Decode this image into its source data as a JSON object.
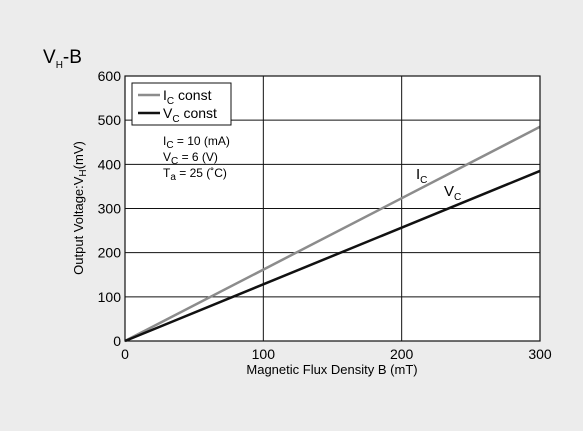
{
  "chart_data": {
    "type": "line",
    "title": {
      "main": "V",
      "sub": "H",
      "rest": "-B"
    },
    "xlabel": "Magnetic Flux Density B (mT)",
    "ylabel": {
      "pre": "Output Voltage:V",
      "sub": "H",
      "post": "(mV)"
    },
    "xlim": [
      0,
      300
    ],
    "ylim": [
      0,
      600
    ],
    "xticks": [
      "0",
      "100",
      "200",
      "300"
    ],
    "yticks": [
      "0",
      "100",
      "200",
      "300",
      "400",
      "500",
      "600"
    ],
    "grid": true,
    "legend_position": "top-left",
    "series": [
      {
        "name": {
          "main": "I",
          "sub": "C",
          "rest": " const"
        },
        "label": {
          "main": "I",
          "sub": "C"
        },
        "color": "#8c8c8c",
        "x": [
          0,
          300
        ],
        "y": [
          0,
          485
        ]
      },
      {
        "name": {
          "main": "V",
          "sub": "C",
          "rest": " const"
        },
        "label": {
          "main": "V",
          "sub": "C"
        },
        "color": "#111111",
        "x": [
          0,
          300
        ],
        "y": [
          0,
          385
        ]
      }
    ],
    "conditions": [
      {
        "main": "I",
        "sub": "C",
        "rest": " =  10  (mA)"
      },
      {
        "main": "V",
        "sub": "C",
        "rest": " =   6  (V)"
      },
      {
        "main": "T",
        "sub": "a",
        "rest": " = 25 (˚C)"
      }
    ]
  }
}
